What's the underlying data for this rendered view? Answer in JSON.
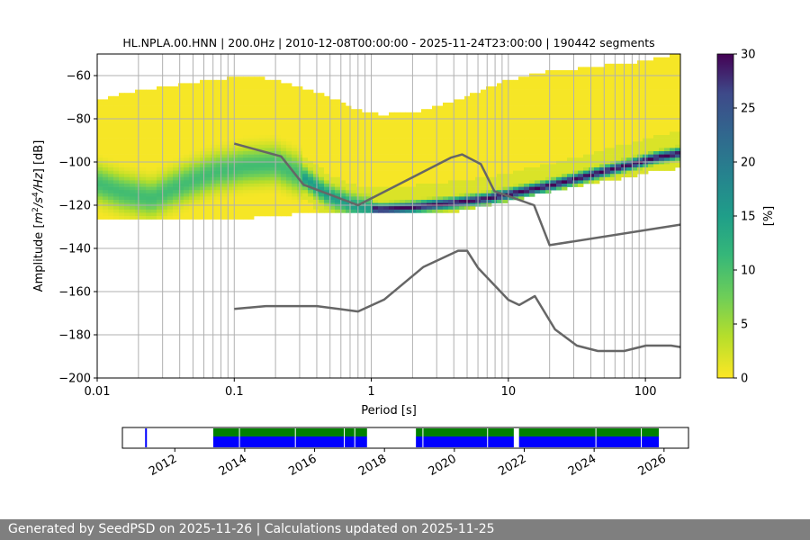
{
  "chart_data": [
    {
      "type": "heatmap",
      "title": "HL.NPLA.00.HNN | 200.0Hz | 2010-12-08T00:00:00 - 2025-11-24T23:00:00 | 190442 segments",
      "xlabel": "Period [s]",
      "ylabel_prefix": "Amplitude [",
      "ylabel_m": "m",
      "ylabel_exp1": "2",
      "ylabel_s": "/s",
      "ylabel_exp2": "4",
      "ylabel_hz": "/Hz",
      "ylabel_suffix": "] [dB]",
      "x_scale": "log",
      "xlim": [
        0.01,
        180
      ],
      "ylim": [
        -200,
        -50
      ],
      "x_ticks": [
        {
          "value": 0.01,
          "label": "0.01"
        },
        {
          "value": 0.1,
          "label": "0.1"
        },
        {
          "value": 1,
          "label": "1"
        },
        {
          "value": 10,
          "label": "10"
        },
        {
          "value": 100,
          "label": "100"
        }
      ],
      "y_ticks": [
        {
          "value": -60,
          "label": "−60"
        },
        {
          "value": -80,
          "label": "−80"
        },
        {
          "value": -100,
          "label": "−100"
        },
        {
          "value": -120,
          "label": "−120"
        },
        {
          "value": -140,
          "label": "−140"
        },
        {
          "value": -160,
          "label": "−160"
        },
        {
          "value": -180,
          "label": "−180"
        },
        {
          "value": -200,
          "label": "−200"
        }
      ],
      "grid": true,
      "colormap": "viridis_r",
      "colorbar": {
        "label": "[%]",
        "range": [
          0,
          30
        ],
        "ticks": [
          {
            "value": 0,
            "label": "0"
          },
          {
            "value": 5,
            "label": "5"
          },
          {
            "value": 10,
            "label": "10"
          },
          {
            "value": 15,
            "label": "15"
          },
          {
            "value": 20,
            "label": "20"
          },
          {
            "value": 25,
            "label": "25"
          },
          {
            "value": 30,
            "label": "30"
          }
        ]
      },
      "density_band": {
        "period": [
          0.01,
          0.015,
          0.025,
          0.04,
          0.07,
          0.12,
          0.2,
          0.3,
          0.5,
          0.8,
          1.2,
          2,
          4,
          7,
          10,
          20,
          40,
          80,
          120,
          180
        ],
        "mode_db": [
          -110,
          -114,
          -117,
          -111,
          -105,
          -102,
          -101,
          -106,
          -116,
          -121,
          -122,
          -121,
          -119,
          -117,
          -115,
          -111,
          -106,
          -101,
          -98,
          -96
        ],
        "lower_db": [
          -127,
          -127,
          -127,
          -127,
          -127,
          -126,
          -125,
          -124,
          -124,
          -124,
          -124,
          -124,
          -123,
          -120,
          -118,
          -114,
          -110,
          -107,
          -104,
          -103
        ],
        "upper_db": [
          -72,
          -68,
          -66,
          -64,
          -62,
          -60,
          -62,
          -65,
          -70,
          -76,
          -78,
          -77,
          -72,
          -66,
          -62,
          -58,
          -56,
          -54,
          -52,
          -50
        ]
      },
      "nlnm": {
        "period": [
          0.1,
          0.17,
          0.4,
          0.8,
          1.24,
          2.4,
          4.3,
          5,
          6,
          10,
          12,
          15.6,
          21.9,
          31.6,
          45,
          70,
          101,
          154,
          180
        ],
        "db": [
          -168,
          -166.7,
          -166.7,
          -169.2,
          -163.7,
          -148.6,
          -141.1,
          -141.1,
          -149,
          -163.8,
          -166.2,
          -162.1,
          -177.5,
          -185,
          -187.5,
          -187.5,
          -185,
          -185,
          -185.7
        ]
      },
      "nhnm": {
        "period": [
          0.1,
          0.22,
          0.32,
          0.8,
          3.8,
          4.6,
          6.3,
          7.9,
          15.4,
          20,
          180
        ],
        "db": [
          -91.5,
          -97.4,
          -110.5,
          -120,
          -98,
          -96.5,
          -101,
          -113.5,
          -120,
          -138.5,
          -129
        ]
      },
      "time_ticks": [
        "2012",
        "2014",
        "2016",
        "2018",
        "2020",
        "2022",
        "2024",
        "2026"
      ],
      "time_axis_range": [
        2010.5,
        2026.7
      ],
      "availability": [
        {
          "start": 2011.15,
          "end": 2011.2,
          "kind": "blue-thin"
        },
        {
          "start": 2013.1,
          "end": 2017.5
        },
        {
          "start": 2018.9,
          "end": 2021.7
        },
        {
          "start": 2021.85,
          "end": 2025.85
        }
      ],
      "availability_gaps": [
        2013.85,
        2015.45,
        2016.85,
        2017.15,
        2019.1,
        2020.95,
        2024.05,
        2025.35
      ]
    }
  ],
  "footer": {
    "text": "Generated by SeedPSD on 2025-11-26 | Calculations updated on 2025-11-25"
  },
  "colors": {
    "model_line": "#666666",
    "grid": "#b0b0b0",
    "data_green": "#008000",
    "data_blue": "#0000ff",
    "footer_bg": "#7f7f7f"
  }
}
